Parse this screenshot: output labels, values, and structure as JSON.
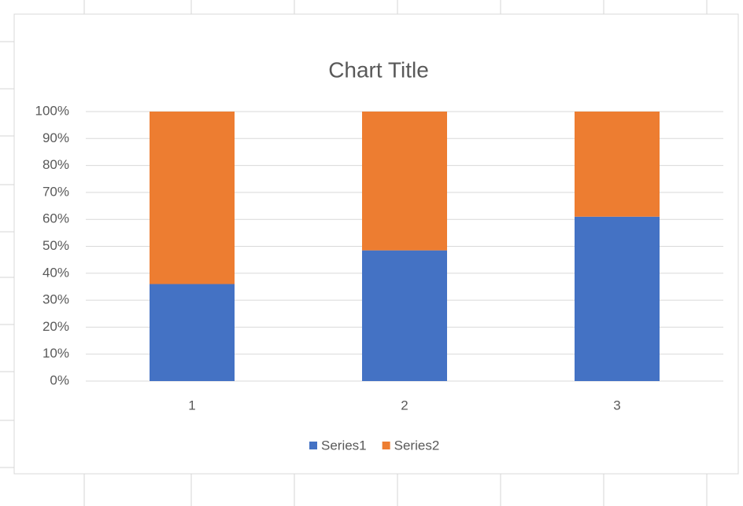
{
  "chart_data": {
    "type": "stacked_bar",
    "title": "Chart Title",
    "categories": [
      "1",
      "2",
      "3"
    ],
    "series": [
      {
        "name": "Series1",
        "color": "#4472c4",
        "values": [
          36,
          48.5,
          61
        ]
      },
      {
        "name": "Series2",
        "color": "#ed7d31",
        "values": [
          64,
          51.5,
          39
        ]
      }
    ],
    "ylim": [
      0,
      100
    ],
    "yticks": [
      {
        "value": 0,
        "label": "0%"
      },
      {
        "value": 10,
        "label": "10%"
      },
      {
        "value": 20,
        "label": "20%"
      },
      {
        "value": 30,
        "label": "30%"
      },
      {
        "value": 40,
        "label": "40%"
      },
      {
        "value": 50,
        "label": "50%"
      },
      {
        "value": 60,
        "label": "60%"
      },
      {
        "value": 70,
        "label": "70%"
      },
      {
        "value": 80,
        "label": "80%"
      },
      {
        "value": 90,
        "label": "90%"
      },
      {
        "value": 100,
        "label": "100%"
      }
    ],
    "grid": true,
    "legend": "bottom"
  }
}
